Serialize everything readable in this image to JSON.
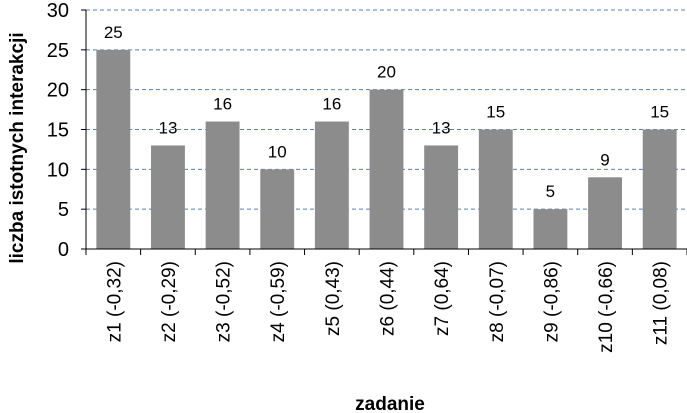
{
  "chart_data": {
    "type": "bar",
    "categories": [
      "z1 (-0,32)",
      "z2 (-0,29)",
      "z3 (-0,52)",
      "z4 (-0,59)",
      "z5 (0,43)",
      "z6 (0,44)",
      "z7 (0,64)",
      "z8 (-0,07)",
      "z9 (-0,86)",
      "z10 (-0,66)",
      "z11 (0,08)"
    ],
    "values": [
      25,
      13,
      16,
      10,
      16,
      20,
      13,
      15,
      5,
      9,
      15
    ],
    "data_labels": [
      "25",
      "13",
      "16",
      "10",
      "16",
      "20",
      "13",
      "15",
      "5",
      "9",
      "15"
    ],
    "title": "",
    "xlabel": "zadanie",
    "ylabel": "liczba istotnych interakcji",
    "ylim": [
      0,
      30
    ],
    "yticks": [
      "0",
      "5",
      "10",
      "15",
      "20",
      "25",
      "30"
    ],
    "grid": true,
    "grid_style": "dashed",
    "legend": "none",
    "bar_color": "#8c8c8c",
    "grid_color": "#5b7fb5"
  }
}
